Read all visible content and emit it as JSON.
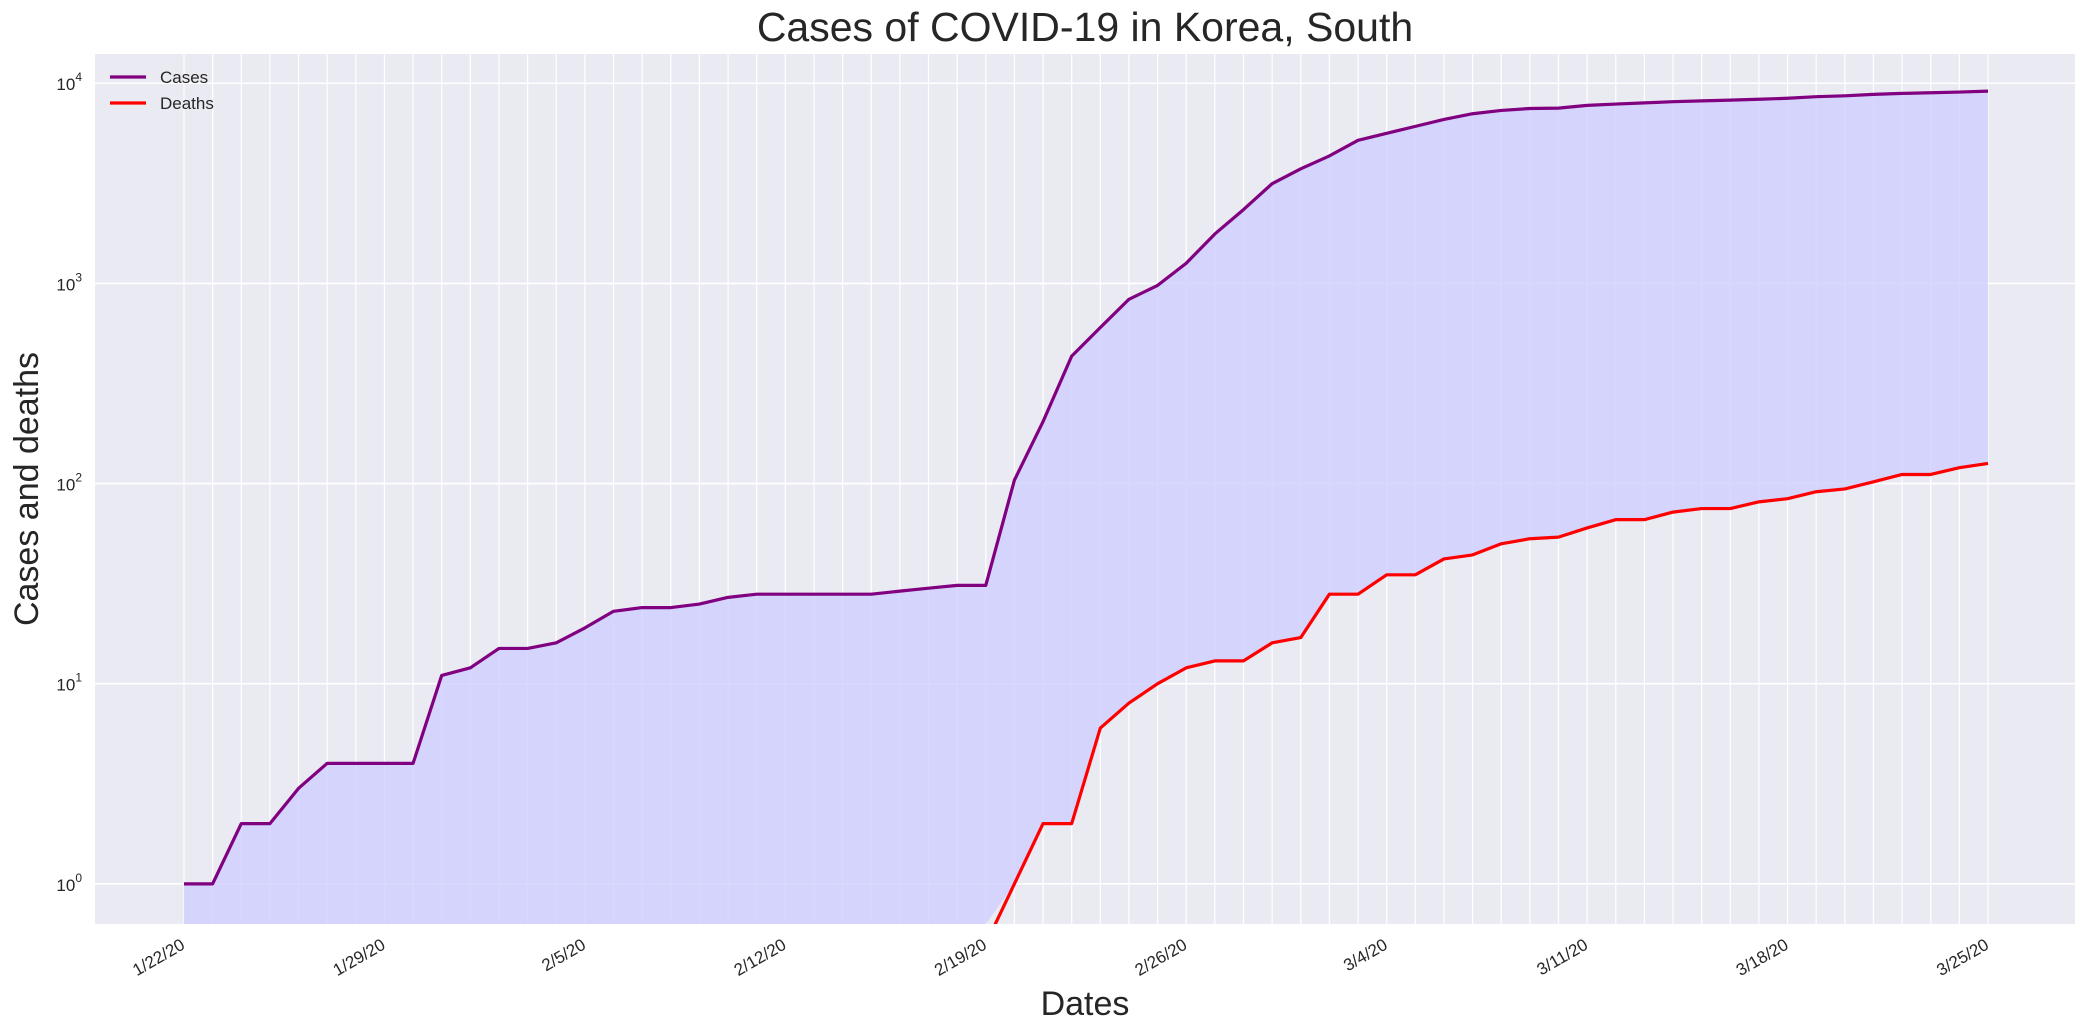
{
  "chart_data": {
    "type": "line",
    "title": "Cases of COVID-19 in Korea, South",
    "xlabel": "Dates",
    "ylabel": "Cases and deaths",
    "yscale": "log",
    "ylim": [
      0.63,
      14000
    ],
    "grid": true,
    "legend_position": "top-left",
    "x": [
      "1/22/20",
      "1/23/20",
      "1/24/20",
      "1/25/20",
      "1/26/20",
      "1/27/20",
      "1/28/20",
      "1/29/20",
      "1/30/20",
      "1/31/20",
      "2/1/20",
      "2/2/20",
      "2/3/20",
      "2/4/20",
      "2/5/20",
      "2/6/20",
      "2/7/20",
      "2/8/20",
      "2/9/20",
      "2/10/20",
      "2/11/20",
      "2/12/20",
      "2/13/20",
      "2/14/20",
      "2/15/20",
      "2/16/20",
      "2/17/20",
      "2/18/20",
      "2/19/20",
      "2/20/20",
      "2/21/20",
      "2/22/20",
      "2/23/20",
      "2/24/20",
      "2/25/20",
      "2/26/20",
      "2/27/20",
      "2/28/20",
      "2/29/20",
      "3/1/20",
      "3/2/20",
      "3/3/20",
      "3/4/20",
      "3/5/20",
      "3/6/20",
      "3/7/20",
      "3/8/20",
      "3/9/20",
      "3/10/20",
      "3/11/20",
      "3/12/20",
      "3/13/20",
      "3/14/20",
      "3/15/20",
      "3/16/20",
      "3/17/20",
      "3/18/20",
      "3/19/20",
      "3/20/20",
      "3/21/20",
      "3/22/20",
      "3/23/20",
      "3/24/20",
      "3/25/20"
    ],
    "x_tick_labels": [
      "1/22/20",
      "1/29/20",
      "2/5/20",
      "2/12/20",
      "2/19/20",
      "2/26/20",
      "3/4/20",
      "3/11/20",
      "3/18/20",
      "3/25/20"
    ],
    "y_ticks": [
      {
        "base": "10",
        "exp": "0",
        "value": 1
      },
      {
        "base": "10",
        "exp": "1",
        "value": 10
      },
      {
        "base": "10",
        "exp": "2",
        "value": 100
      },
      {
        "base": "10",
        "exp": "3",
        "value": 1000
      },
      {
        "base": "10",
        "exp": "4",
        "value": 10000
      }
    ],
    "series": [
      {
        "name": "Cases",
        "color": "#800080",
        "values": [
          1,
          1,
          2,
          2,
          3,
          4,
          4,
          4,
          4,
          11,
          12,
          15,
          15,
          16,
          19,
          23,
          24,
          24,
          25,
          27,
          28,
          28,
          28,
          28,
          28,
          29,
          30,
          31,
          31,
          104,
          204,
          433,
          602,
          833,
          977,
          1261,
          1766,
          2337,
          3150,
          3736,
          4335,
          5186,
          5621,
          6088,
          6593,
          7041,
          7314,
          7478,
          7513,
          7755,
          7869,
          7979,
          8086,
          8162,
          8236,
          8320,
          8413,
          8565,
          8652,
          8799,
          8897,
          8961,
          9037,
          9137
        ]
      },
      {
        "name": "Deaths",
        "color": "#ff0000",
        "values": [
          0,
          0,
          0,
          0,
          0,
          0,
          0,
          0,
          0,
          0,
          0,
          0,
          0,
          0,
          0,
          0,
          0,
          0,
          0,
          0,
          0,
          0,
          0,
          0,
          0,
          0,
          0,
          0,
          0,
          1,
          2,
          2,
          6,
          8,
          10,
          12,
          13,
          13,
          16,
          17,
          28,
          28,
          35,
          35,
          42,
          44,
          50,
          53,
          54,
          60,
          66,
          66,
          72,
          75,
          75,
          81,
          84,
          91,
          94,
          102,
          111,
          111,
          120,
          126
        ]
      }
    ],
    "fill_color": "#ccccff"
  }
}
